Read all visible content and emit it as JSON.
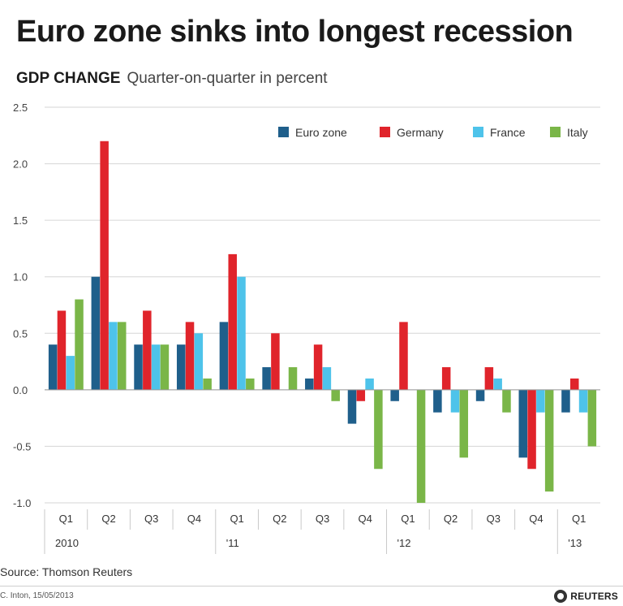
{
  "header": {
    "title": "Euro zone sinks into longest recession",
    "subtitle_bold": "GDP CHANGE",
    "subtitle_light": "Quarter-on-quarter in percent"
  },
  "footer": {
    "source": "Source: Thomson Reuters",
    "credit": "C. Inton, 15/05/2013",
    "brand": "REUTERS"
  },
  "chart_data": {
    "type": "bar",
    "title": "Euro zone sinks into longest recession",
    "subtitle": "GDP CHANGE Quarter-on-quarter in percent",
    "xlabel": "",
    "ylabel": "",
    "ylim": [
      -1.0,
      2.5
    ],
    "yticks": [
      "2.5",
      "2.0",
      "1.5",
      "1.0",
      "0.5",
      "0.0",
      "-0.5",
      "-1.0"
    ],
    "ytick_values": [
      2.5,
      2.0,
      1.5,
      1.0,
      0.5,
      0.0,
      -0.5,
      -1.0
    ],
    "grid": true,
    "legend_position": "top-right",
    "categories": [
      "Q1",
      "Q2",
      "Q3",
      "Q4",
      "Q1",
      "Q2",
      "Q3",
      "Q4",
      "Q1",
      "Q2",
      "Q3",
      "Q4",
      "Q1"
    ],
    "years": [
      {
        "label": "2010",
        "start_index": 0
      },
      {
        "label": "'11",
        "start_index": 4
      },
      {
        "label": "'12",
        "start_index": 8
      },
      {
        "label": "'13",
        "start_index": 12
      }
    ],
    "series": [
      {
        "name": "Euro zone",
        "color": "#1f5f8b",
        "values": [
          0.4,
          1.0,
          0.4,
          0.4,
          0.6,
          0.2,
          0.1,
          -0.3,
          -0.1,
          -0.2,
          -0.1,
          -0.6,
          -0.2
        ]
      },
      {
        "name": "Germany",
        "color": "#e0242b",
        "values": [
          0.7,
          2.2,
          0.7,
          0.6,
          1.2,
          0.5,
          0.4,
          -0.1,
          0.6,
          0.2,
          0.2,
          -0.7,
          0.1
        ]
      },
      {
        "name": "France",
        "color": "#4ec3ea",
        "values": [
          0.3,
          0.6,
          0.4,
          0.5,
          1.0,
          0.0,
          0.2,
          0.1,
          0.0,
          -0.2,
          0.1,
          -0.2,
          -0.2
        ]
      },
      {
        "name": "Italy",
        "color": "#7ab648",
        "values": [
          0.8,
          0.6,
          0.4,
          0.1,
          0.1,
          0.2,
          -0.1,
          -0.7,
          -1.0,
          -0.6,
          -0.2,
          -0.9,
          -0.5
        ]
      }
    ]
  }
}
